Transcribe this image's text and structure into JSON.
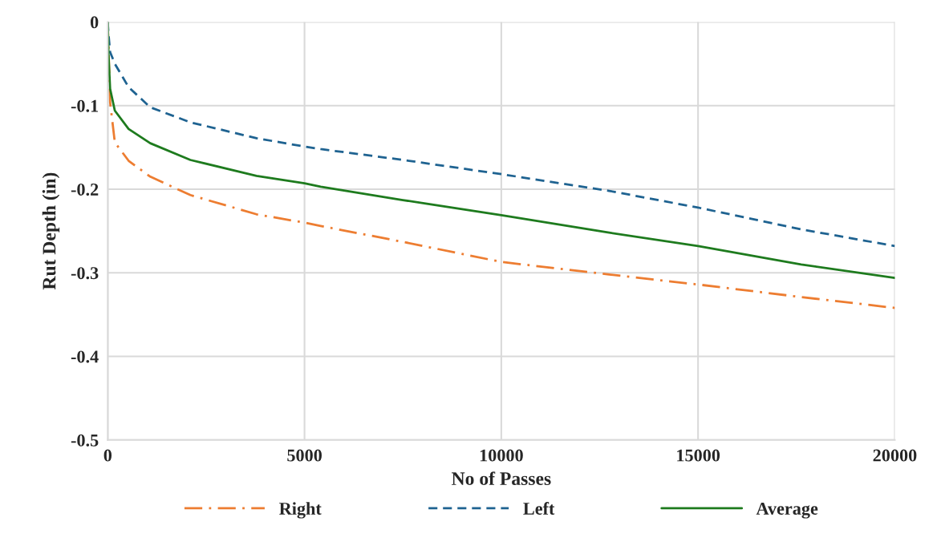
{
  "chart_data": {
    "type": "line",
    "xlabel": "No of Passes",
    "ylabel": "Rut Depth (in)",
    "x": [
      0,
      20,
      60,
      180,
      530,
      1080,
      2100,
      3780,
      5000,
      5410,
      7500,
      10000,
      12740,
      15000,
      17620,
      20000
    ],
    "series": [
      {
        "name": "Right",
        "color": "#ed7d31",
        "line_style": "dashdot",
        "values": [
          0,
          -0.032,
          -0.096,
          -0.144,
          -0.166,
          -0.185,
          -0.207,
          -0.23,
          -0.24,
          -0.244,
          -0.263,
          -0.287,
          -0.302,
          -0.314,
          -0.329,
          -0.342
        ]
      },
      {
        "name": "Left",
        "color": "#1f6391",
        "line_style": "dashed",
        "values": [
          0,
          -0.015,
          -0.036,
          -0.05,
          -0.078,
          -0.102,
          -0.12,
          -0.139,
          -0.149,
          -0.152,
          -0.165,
          -0.182,
          -0.202,
          -0.222,
          -0.248,
          -0.268
        ]
      },
      {
        "name": "Average",
        "color": "#1e7b1e",
        "line_style": "solid",
        "values": [
          0,
          -0.04,
          -0.08,
          -0.106,
          -0.128,
          -0.145,
          -0.165,
          -0.184,
          -0.193,
          -0.197,
          -0.213,
          -0.231,
          -0.252,
          -0.268,
          -0.29,
          -0.306
        ]
      }
    ],
    "xlim": [
      0,
      20000
    ],
    "xticks": [
      0,
      5000,
      10000,
      15000,
      20000
    ],
    "ylim": [
      -0.5,
      0
    ],
    "yticks": [
      -0.5,
      -0.4,
      -0.3,
      -0.2,
      -0.1,
      0
    ],
    "grid": true,
    "legend": "bottom",
    "marker": "none"
  }
}
